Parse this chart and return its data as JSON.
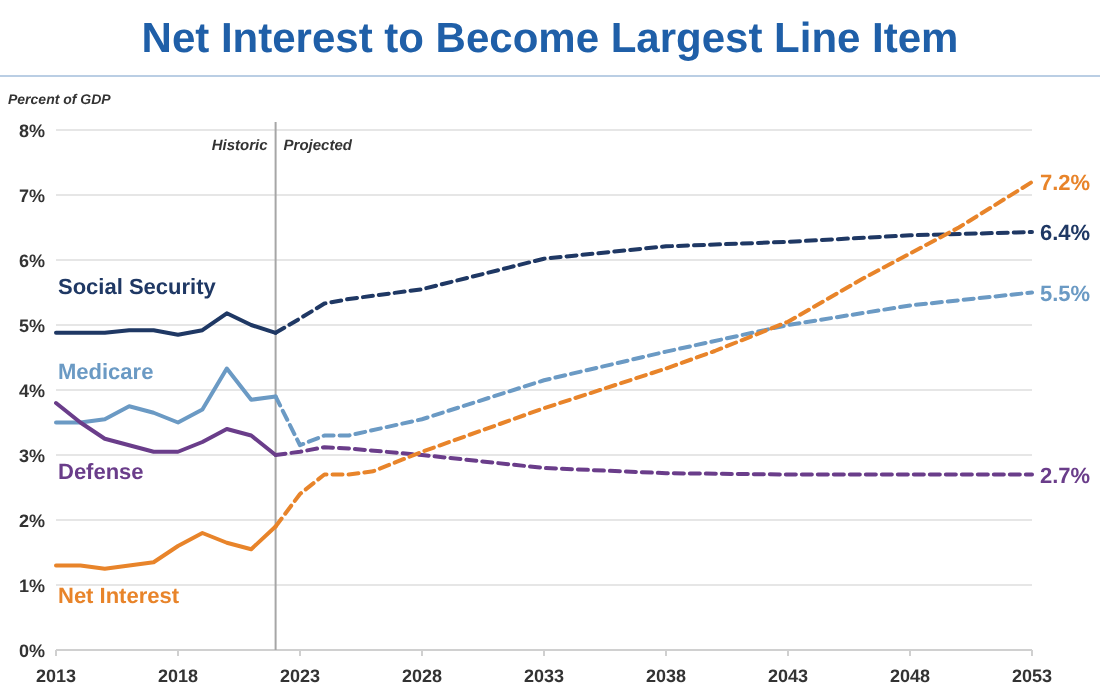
{
  "chart_data": {
    "type": "line",
    "title": "Net Interest to Become Largest Line Item",
    "ylabel": "Percent of GDP",
    "xlim": [
      2013,
      2053
    ],
    "ylim": [
      0,
      8
    ],
    "xticks": [
      2013,
      2018,
      2023,
      2028,
      2033,
      2038,
      2043,
      2048,
      2053
    ],
    "yticks": [
      {
        "value": 0,
        "label": "0%"
      },
      {
        "value": 1,
        "label": "1%"
      },
      {
        "value": 2,
        "label": "2%"
      },
      {
        "value": 3,
        "label": "3%"
      },
      {
        "value": 4,
        "label": "4%"
      },
      {
        "value": 5,
        "label": "5%"
      },
      {
        "value": 6,
        "label": "6%"
      },
      {
        "value": 7,
        "label": "7%"
      },
      {
        "value": 8,
        "label": "8%"
      }
    ],
    "grid": "y",
    "marker": "none",
    "ref_lines": [
      {
        "axis": "x",
        "value": 2022,
        "color": "#a6a6a6"
      }
    ],
    "annotations": [
      "Historic",
      "Projected"
    ],
    "series": [
      {
        "name": "Social Security",
        "color": "#1f3864",
        "line_style": "solid",
        "x": [
          2013,
          2014,
          2015,
          2016,
          2017,
          2018,
          2019,
          2020,
          2021,
          2022
        ],
        "values": [
          4.88,
          4.88,
          4.88,
          4.92,
          4.92,
          4.85,
          4.92,
          5.18,
          5.0,
          4.88
        ]
      },
      {
        "name": "Medicare",
        "color": "#6b9ac4",
        "line_style": "solid",
        "x": [
          2013,
          2014,
          2015,
          2016,
          2017,
          2018,
          2019,
          2020,
          2021,
          2022
        ],
        "values": [
          3.5,
          3.5,
          3.55,
          3.75,
          3.65,
          3.5,
          3.7,
          4.33,
          3.85,
          3.9
        ]
      },
      {
        "name": "Defense",
        "color": "#6a3d8a",
        "line_style": "solid",
        "x": [
          2013,
          2014,
          2015,
          2016,
          2017,
          2018,
          2019,
          2020,
          2021,
          2022
        ],
        "values": [
          3.8,
          3.5,
          3.25,
          3.15,
          3.05,
          3.05,
          3.2,
          3.4,
          3.3,
          3.0
        ]
      },
      {
        "name": "Net Interest",
        "color": "#e8842a",
        "line_style": "solid",
        "x": [
          2013,
          2014,
          2015,
          2016,
          2017,
          2018,
          2019,
          2020,
          2021,
          2022
        ],
        "values": [
          1.3,
          1.3,
          1.25,
          1.3,
          1.35,
          1.6,
          1.8,
          1.65,
          1.55,
          1.9
        ]
      },
      {
        "color": "#1f3864",
        "line_style": "dashed",
        "x": [
          2022,
          2023,
          2024,
          2025,
          2028,
          2033,
          2038,
          2043,
          2048,
          2053
        ],
        "values": [
          4.88,
          5.1,
          5.33,
          5.4,
          5.55,
          6.02,
          6.21,
          6.28,
          6.38,
          6.43
        ],
        "value_labels": [
          null,
          null,
          null,
          null,
          null,
          null,
          null,
          null,
          null,
          "6.4%"
        ]
      },
      {
        "color": "#6b9ac4",
        "line_style": "dashed",
        "x": [
          2022,
          2023,
          2024,
          2025,
          2028,
          2033,
          2038,
          2043,
          2048,
          2053
        ],
        "values": [
          3.9,
          3.15,
          3.3,
          3.3,
          3.55,
          4.15,
          4.59,
          5.0,
          5.3,
          5.5
        ],
        "value_labels": [
          null,
          null,
          null,
          null,
          null,
          null,
          null,
          null,
          null,
          "5.5%"
        ]
      },
      {
        "color": "#6a3d8a",
        "line_style": "dashed",
        "x": [
          2022,
          2023,
          2024,
          2025,
          2028,
          2033,
          2038,
          2043,
          2048,
          2053
        ],
        "values": [
          3.0,
          3.05,
          3.12,
          3.1,
          3.0,
          2.8,
          2.72,
          2.7,
          2.7,
          2.7
        ],
        "value_labels": [
          null,
          null,
          null,
          null,
          null,
          null,
          null,
          null,
          null,
          "2.7%"
        ]
      },
      {
        "color": "#e8842a",
        "line_style": "dashed",
        "x": [
          2022,
          2023,
          2024,
          2025,
          2026,
          2028,
          2033,
          2038,
          2040,
          2043,
          2046,
          2048,
          2050,
          2053
        ],
        "values": [
          1.9,
          2.4,
          2.7,
          2.7,
          2.75,
          3.05,
          3.72,
          4.33,
          4.6,
          5.05,
          5.7,
          6.1,
          6.5,
          7.2
        ],
        "value_labels": [
          null,
          null,
          null,
          null,
          null,
          null,
          null,
          null,
          null,
          null,
          null,
          null,
          null,
          "7.2%"
        ]
      }
    ]
  }
}
